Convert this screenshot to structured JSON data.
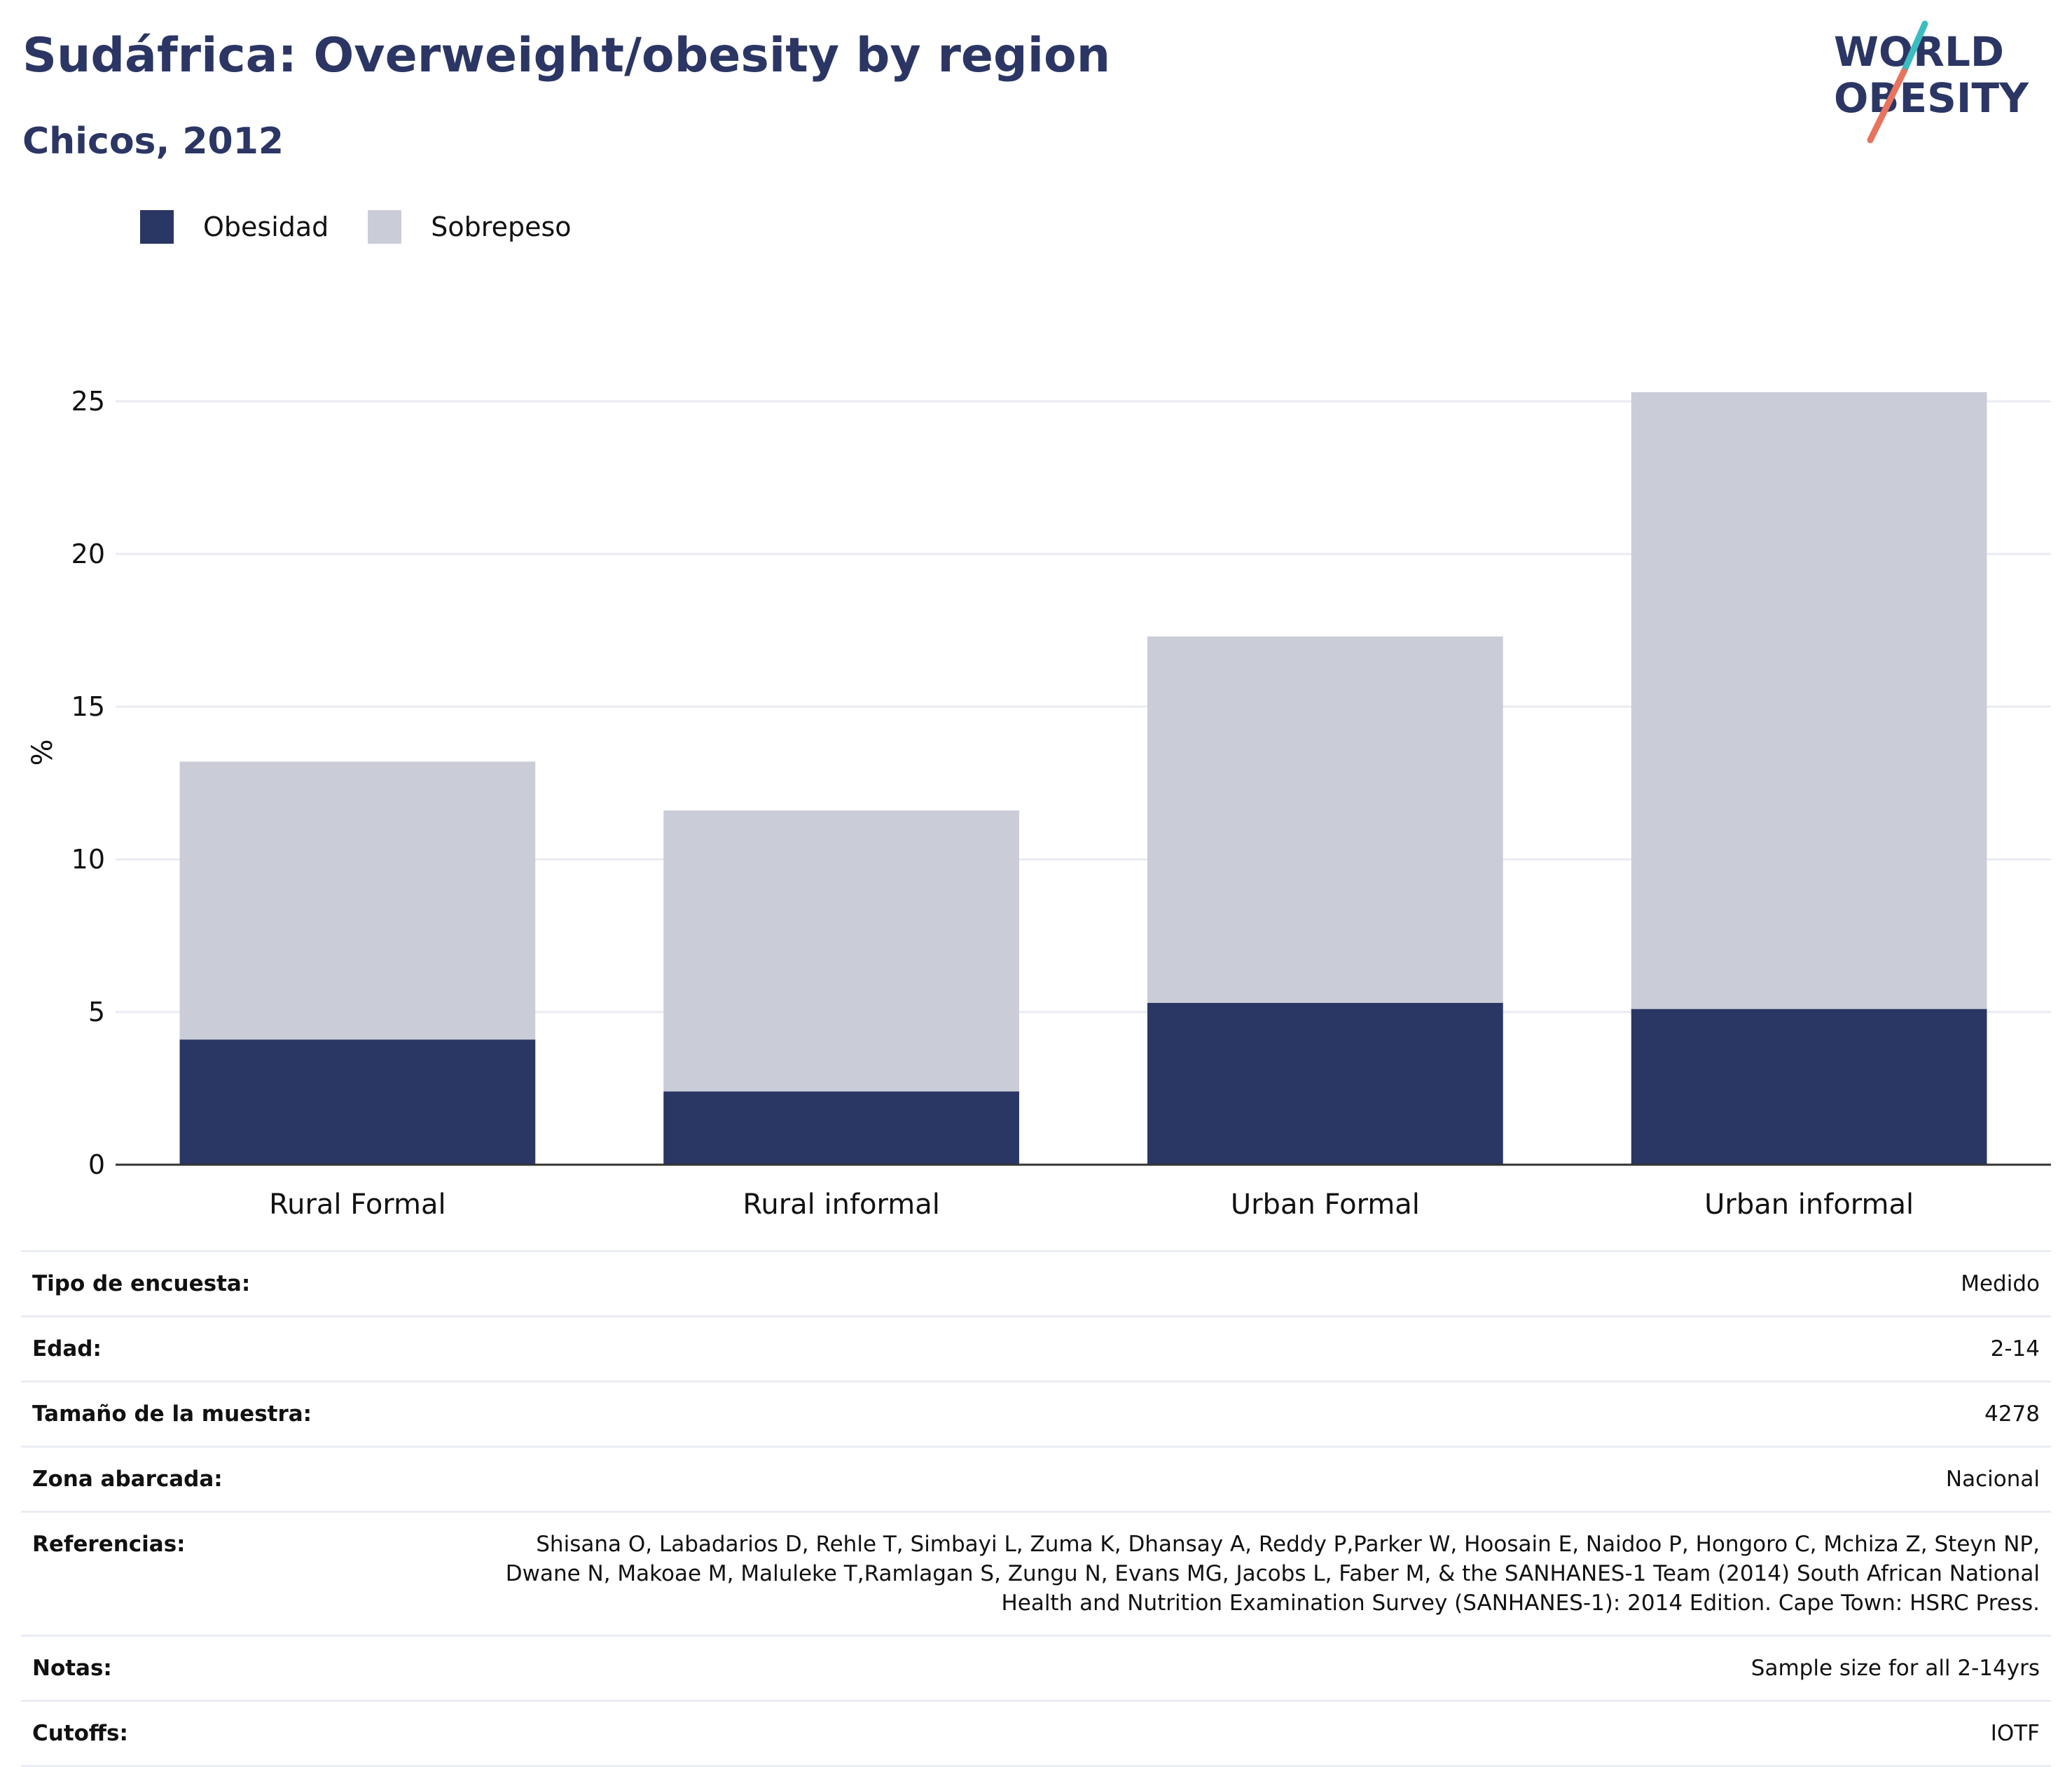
{
  "title": "Sudáfrica: Overweight/obesity by region",
  "subtitle": "Chicos, 2012",
  "logo": {
    "line1": "WORLD",
    "line2": "OBESITY",
    "colors": {
      "text": "#2b3664",
      "slash_top": "#3bbcc0",
      "slash_bottom": "#e8735f"
    }
  },
  "colors": {
    "obesidad": "#2a3664",
    "sobrepeso": "#cacdd8",
    "grid": "#e8ebf0",
    "axis": "#333333"
  },
  "chart_data": {
    "type": "bar",
    "stacked": true,
    "categories": [
      "Rural Formal",
      "Rural informal",
      "Urban Formal",
      "Urban informal"
    ],
    "series": [
      {
        "name": "Obesidad",
        "values": [
          4.1,
          2.4,
          5.3,
          5.1
        ]
      },
      {
        "name": "Sobrepeso",
        "values": [
          9.1,
          9.2,
          12.0,
          20.2
        ]
      }
    ],
    "ylabel": "%",
    "ylim": [
      0,
      27
    ],
    "yticks": [
      0,
      5,
      10,
      15,
      20,
      25
    ],
    "grid": true,
    "legend": "top-left"
  },
  "info": [
    {
      "key": "Tipo de encuesta:",
      "value": "Medido"
    },
    {
      "key": "Edad:",
      "value": "2-14"
    },
    {
      "key": "Tamaño de la muestra:",
      "value": "4278"
    },
    {
      "key": "Zona abarcada:",
      "value": "Nacional"
    },
    {
      "key": "Referencias:",
      "value": "Shisana O, Labadarios D, Rehle T, Simbayi L, Zuma K, Dhansay A, Reddy P,Parker W, Hoosain E, Naidoo P, Hongoro C, Mchiza Z, Steyn NP, Dwane N, Makoae M, Maluleke T,Ramlagan S, Zungu N, Evans MG, Jacobs L, Faber M, & the SANHANES-1 Team (2014) South African National Health and Nutrition Examination Survey (SANHANES-1): 2014 Edition. Cape Town: HSRC Press."
    },
    {
      "key": "Notas:",
      "value": "Sample size for all 2-14yrs"
    },
    {
      "key": "Cutoffs:",
      "value": "IOTF"
    }
  ]
}
